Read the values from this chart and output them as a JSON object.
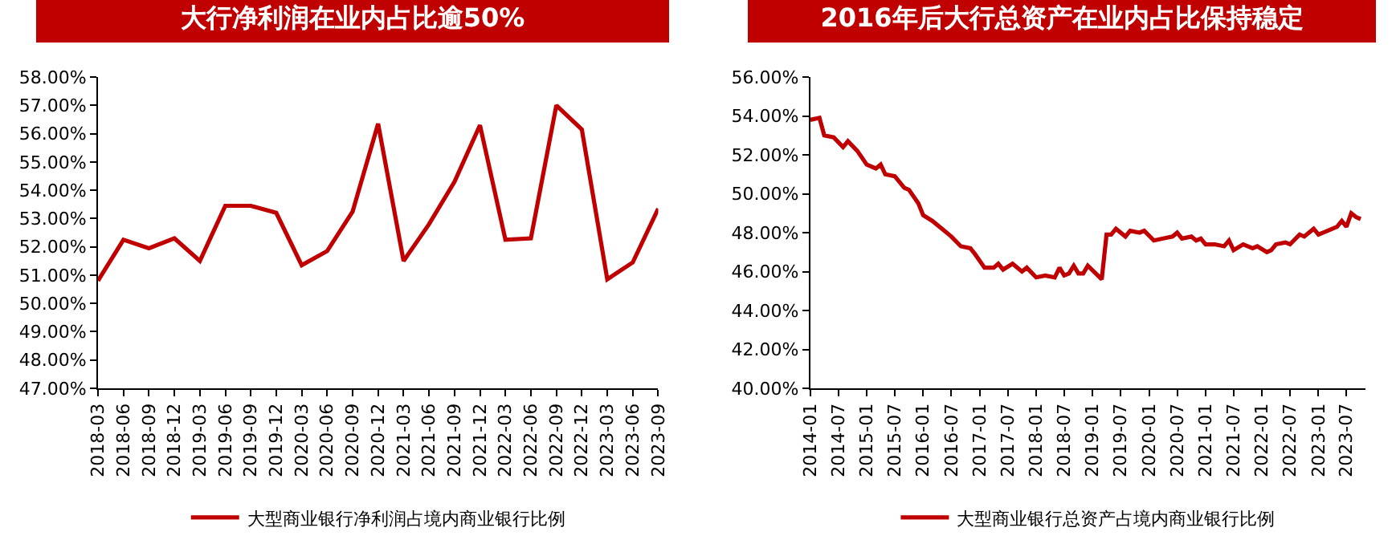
{
  "chart_data": [
    {
      "type": "line",
      "title": "大行净利润在业内占比逾50%",
      "categories": [
        "2018-03",
        "2018-06",
        "2018-09",
        "2018-12",
        "2019-03",
        "2019-06",
        "2019-09",
        "2019-12",
        "2020-03",
        "2020-06",
        "2020-09",
        "2020-12",
        "2021-03",
        "2021-06",
        "2021-09",
        "2021-12",
        "2022-03",
        "2022-06",
        "2022-09",
        "2022-12",
        "2023-03",
        "2023-06",
        "2023-09"
      ],
      "series": [
        {
          "name": "大型商业银行净利润占境内商业银行比例",
          "color": "#c00000",
          "values": [
            50.8,
            52.25,
            51.95,
            52.3,
            51.5,
            53.45,
            53.45,
            53.2,
            51.35,
            51.85,
            53.25,
            56.35,
            51.5,
            52.8,
            54.3,
            56.3,
            52.25,
            52.3,
            57.0,
            56.15,
            50.85,
            51.45,
            53.35
          ]
        }
      ],
      "ylim": [
        47,
        58
      ],
      "yticks": [
        {
          "value": 47,
          "label": "47.00%"
        },
        {
          "value": 48,
          "label": "48.00%"
        },
        {
          "value": 49,
          "label": "49.00%"
        },
        {
          "value": 50,
          "label": "50.00%"
        },
        {
          "value": 51,
          "label": "51.00%"
        },
        {
          "value": 52,
          "label": "52.00%"
        },
        {
          "value": 53,
          "label": "53.00%"
        },
        {
          "value": 54,
          "label": "54.00%"
        },
        {
          "value": 55,
          "label": "55.00%"
        },
        {
          "value": 56,
          "label": "56.00%"
        },
        {
          "value": 57,
          "label": "57.00%"
        },
        {
          "value": 58,
          "label": "58.00%"
        }
      ],
      "grid": false,
      "legend": "bottom"
    },
    {
      "type": "line",
      "title": "2016年后大行总资产在业内占比保持稳定",
      "x": [
        "2014-01",
        "2014-03",
        "2014-04",
        "2014-06",
        "2014-08",
        "2014-09",
        "2014-11",
        "2015-01",
        "2015-03",
        "2015-04",
        "2015-05",
        "2015-07",
        "2015-09",
        "2015-10",
        "2015-12",
        "2016-01",
        "2016-03",
        "2016-06",
        "2016-07",
        "2016-09",
        "2016-11",
        "2016-12",
        "2017-02",
        "2017-04",
        "2017-05",
        "2017-06",
        "2017-08",
        "2017-10",
        "2017-11",
        "2018-01",
        "2018-03",
        "2018-05",
        "2018-06",
        "2018-07",
        "2018-08",
        "2018-09",
        "2018-10",
        "2018-11",
        "2018-12",
        "2019-03",
        "2019-04",
        "2019-05",
        "2019-06",
        "2019-08",
        "2019-09",
        "2019-11",
        "2019-12",
        "2020-02",
        "2020-04",
        "2020-06",
        "2020-07",
        "2020-08",
        "2020-10",
        "2020-11",
        "2020-12",
        "2021-01",
        "2021-03",
        "2021-05",
        "2021-06",
        "2021-07",
        "2021-09",
        "2021-11",
        "2021-12",
        "2022-02",
        "2022-03",
        "2022-04",
        "2022-06",
        "2022-07",
        "2022-09",
        "2022-10",
        "2022-12",
        "2023-01",
        "2023-03",
        "2023-05",
        "2023-06",
        "2023-07",
        "2023-08",
        "2023-09",
        "2023-10"
      ],
      "series": [
        {
          "name": "大型商业银行总资产占境内商业银行比例",
          "color": "#c00000",
          "values": [
            53.8,
            53.9,
            53.0,
            52.9,
            52.4,
            52.7,
            52.2,
            51.5,
            51.3,
            51.5,
            51.0,
            50.9,
            50.3,
            50.2,
            49.5,
            48.9,
            48.6,
            48.0,
            47.8,
            47.3,
            47.2,
            46.9,
            46.2,
            46.2,
            46.4,
            46.1,
            46.4,
            46.0,
            46.2,
            45.7,
            45.8,
            45.7,
            46.2,
            45.8,
            45.9,
            46.3,
            45.9,
            45.9,
            46.3,
            45.6,
            47.9,
            47.9,
            48.2,
            47.8,
            48.1,
            48.0,
            48.1,
            47.6,
            47.7,
            47.8,
            48.0,
            47.7,
            47.8,
            47.6,
            47.7,
            47.4,
            47.4,
            47.3,
            47.6,
            47.1,
            47.4,
            47.2,
            47.3,
            47.0,
            47.1,
            47.4,
            47.5,
            47.4,
            47.9,
            47.8,
            48.2,
            47.9,
            48.1,
            48.3,
            48.6,
            48.3,
            49.0,
            48.8,
            48.7
          ]
        }
      ],
      "xlim": [
        "2014-01",
        "2023-11"
      ],
      "xticks": [
        {
          "value": "2014-01",
          "label": "2014-01"
        },
        {
          "value": "2014-07",
          "label": "2014-07"
        },
        {
          "value": "2015-01",
          "label": "2015-01"
        },
        {
          "value": "2015-07",
          "label": "2015-07"
        },
        {
          "value": "2016-01",
          "label": "2016-01"
        },
        {
          "value": "2016-07",
          "label": "2016-07"
        },
        {
          "value": "2017-01",
          "label": "2017-01"
        },
        {
          "value": "2017-07",
          "label": "2017-07"
        },
        {
          "value": "2018-01",
          "label": "2018-01"
        },
        {
          "value": "2018-07",
          "label": "2018-07"
        },
        {
          "value": "2019-01",
          "label": "2019-01"
        },
        {
          "value": "2019-07",
          "label": "2019-07"
        },
        {
          "value": "2020-01",
          "label": "2020-01"
        },
        {
          "value": "2020-07",
          "label": "2020-07"
        },
        {
          "value": "2021-01",
          "label": "2021-01"
        },
        {
          "value": "2021-07",
          "label": "2021-07"
        },
        {
          "value": "2022-01",
          "label": "2022-01"
        },
        {
          "value": "2022-07",
          "label": "2022-07"
        },
        {
          "value": "2023-01",
          "label": "2023-01"
        },
        {
          "value": "2023-07",
          "label": "2023-07"
        }
      ],
      "ylim": [
        40,
        56
      ],
      "yticks": [
        {
          "value": 40,
          "label": "40.00%"
        },
        {
          "value": 42,
          "label": "42.00%"
        },
        {
          "value": 44,
          "label": "44.00%"
        },
        {
          "value": 46,
          "label": "46.00%"
        },
        {
          "value": 48,
          "label": "48.00%"
        },
        {
          "value": 50,
          "label": "50.00%"
        },
        {
          "value": 52,
          "label": "52.00%"
        },
        {
          "value": 54,
          "label": "54.00%"
        },
        {
          "value": 56,
          "label": "56.00%"
        }
      ],
      "grid": false,
      "legend": "bottom"
    }
  ]
}
